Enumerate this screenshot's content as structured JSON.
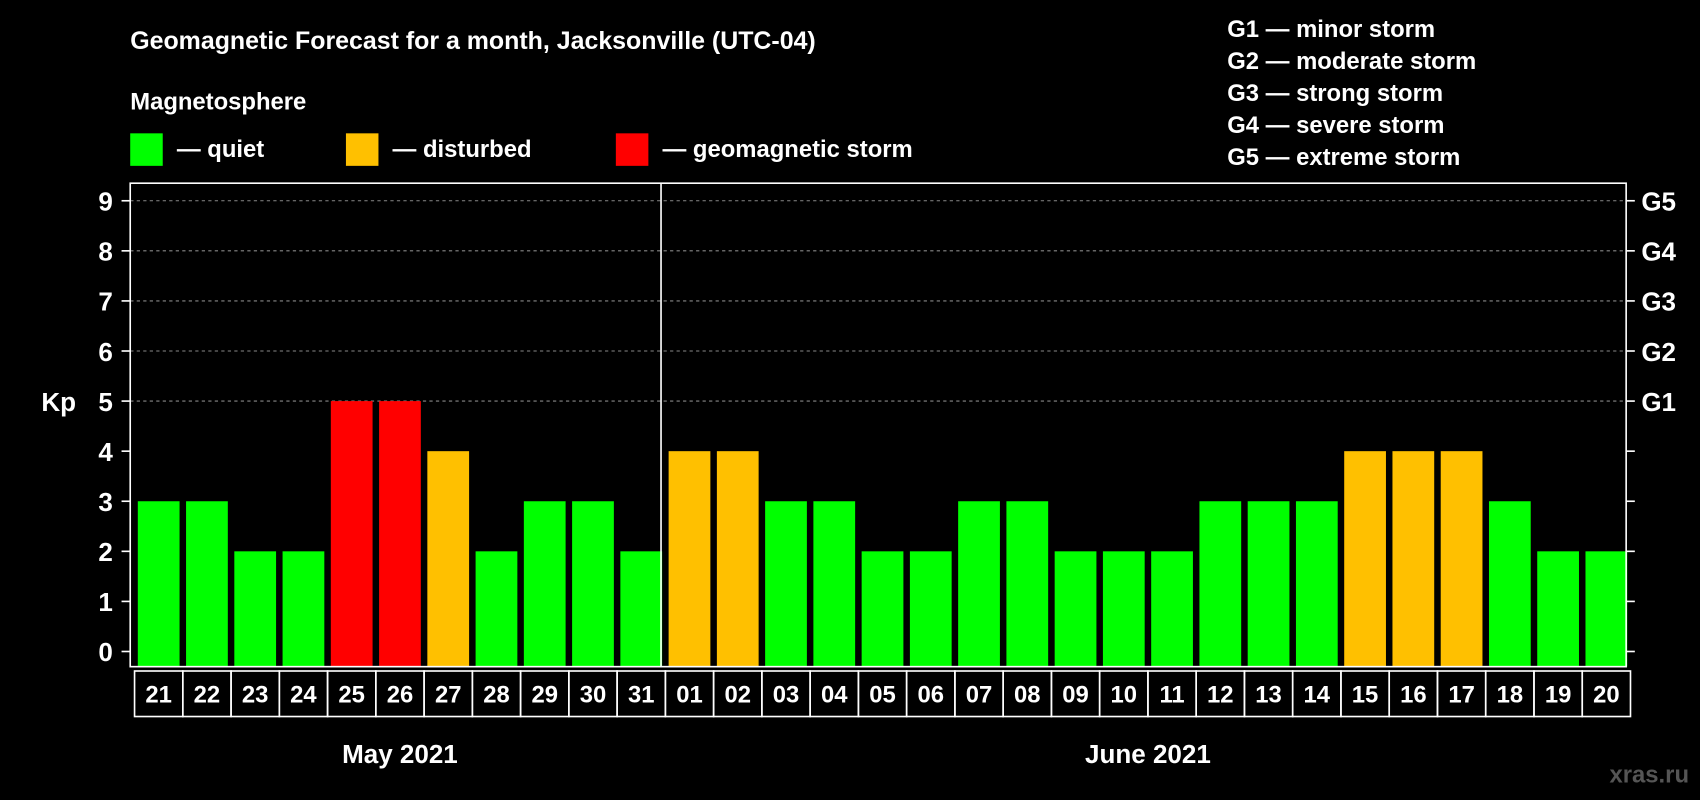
{
  "chart_data": {
    "type": "bar",
    "title": "Geomagnetic Forecast for a month, Jacksonville (UTC-04)",
    "legend_title": "Magnetosphere",
    "legend": [
      {
        "label": "— quiet",
        "color": "#00ff00"
      },
      {
        "label": "— disturbed",
        "color": "#ffc000"
      },
      {
        "label": "— geomagnetic storm",
        "color": "#ff0000"
      }
    ],
    "storm_scale": [
      "G1 — minor storm",
      "G2 — moderate storm",
      "G3 — strong storm",
      "G4 — severe storm",
      "G5 — extreme storm"
    ],
    "ylabel": "Kp",
    "ylim": [
      0,
      9
    ],
    "yticks": [
      "0",
      "1",
      "2",
      "3",
      "4",
      "5",
      "6",
      "7",
      "8",
      "9"
    ],
    "right_ticks": [
      {
        "value": 5,
        "label": "G1"
      },
      {
        "value": 6,
        "label": "G2"
      },
      {
        "value": 7,
        "label": "G3"
      },
      {
        "value": 8,
        "label": "G4"
      },
      {
        "value": 9,
        "label": "G5"
      }
    ],
    "grid": "dashed at 5-9",
    "categories": [
      "21",
      "22",
      "23",
      "24",
      "25",
      "26",
      "27",
      "28",
      "29",
      "30",
      "31",
      "01",
      "02",
      "03",
      "04",
      "05",
      "06",
      "07",
      "08",
      "09",
      "10",
      "11",
      "12",
      "13",
      "14",
      "15",
      "16",
      "17",
      "18",
      "19",
      "20"
    ],
    "values": [
      3,
      3,
      2,
      2,
      5,
      5,
      4,
      2,
      3,
      3,
      2,
      4,
      4,
      3,
      3,
      2,
      2,
      3,
      3,
      2,
      2,
      2,
      3,
      3,
      3,
      4,
      4,
      4,
      3,
      2,
      2
    ],
    "months": [
      {
        "label": "May 2021",
        "first_index": 0,
        "count": 11
      },
      {
        "label": "June 2021",
        "first_index": 11,
        "count": 20
      }
    ],
    "watermark": "xras.ru"
  }
}
